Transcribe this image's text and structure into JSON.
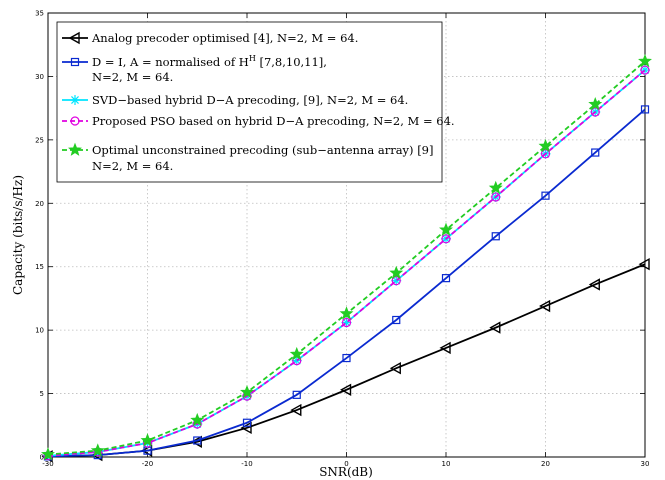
{
  "chart_data": {
    "type": "line",
    "xlabel": "SNR(dB)",
    "ylabel": "Capacity (bits/s/Hz)",
    "xlim": [
      -30,
      30
    ],
    "ylim": [
      0,
      35
    ],
    "xticks": [
      -30,
      -20,
      -10,
      0,
      10,
      20,
      30
    ],
    "yticks": [
      0,
      5,
      10,
      15,
      20,
      25,
      30,
      35
    ],
    "x": [
      -30,
      -25,
      -20,
      -15,
      -10,
      -5,
      0,
      5,
      10,
      15,
      20,
      25,
      30
    ],
    "grid": true,
    "legend_position": "top-left",
    "series": [
      {
        "name": "Analog precoder optimised  [4], N=2, M = 64.",
        "color": "#000000",
        "marker": "triangle-left",
        "dashed": false,
        "values": [
          0.05,
          0.15,
          0.5,
          1.2,
          2.3,
          3.7,
          5.3,
          7.0,
          8.6,
          10.2,
          11.9,
          13.6,
          15.2
        ]
      },
      {
        "name_line1": "D = I, A = normalised of H",
        "name_sup": "H",
        "name_line1_tail": " [7,8,10,11],",
        "name_line2": "N=2, M = 64.",
        "color": "#0a2ad0",
        "marker": "square",
        "dashed": false,
        "values": [
          0.05,
          0.15,
          0.5,
          1.3,
          2.7,
          4.9,
          7.8,
          10.8,
          14.1,
          17.4,
          20.6,
          24.0,
          27.4
        ]
      },
      {
        "name": "SVD−based hybrid D−A precoding, [9], N=2, M = 64.",
        "color": "#00e5ff",
        "marker": "star",
        "dashed": false,
        "values": [
          0.1,
          0.4,
          1.1,
          2.6,
          4.8,
          7.6,
          10.6,
          13.9,
          17.2,
          20.5,
          23.9,
          27.2,
          30.5
        ]
      },
      {
        "name": "Proposed PSO based on hybrid D−A precoding, N=2, M = 64.",
        "color": "#e000e0",
        "marker": "circle",
        "dashed": true,
        "values": [
          0.1,
          0.4,
          1.1,
          2.6,
          4.8,
          7.6,
          10.6,
          13.9,
          17.2,
          20.5,
          23.9,
          27.2,
          30.5
        ]
      },
      {
        "name_line1": "Optimal unconstrained precoding (sub−antenna array) [9]",
        "name_line2": "N=2, M = 64.",
        "color": "#22cc22",
        "marker": "pentagram",
        "dashed": true,
        "values": [
          0.2,
          0.5,
          1.3,
          2.9,
          5.1,
          8.1,
          11.3,
          14.5,
          17.9,
          21.2,
          24.5,
          27.8,
          31.2
        ]
      }
    ]
  }
}
